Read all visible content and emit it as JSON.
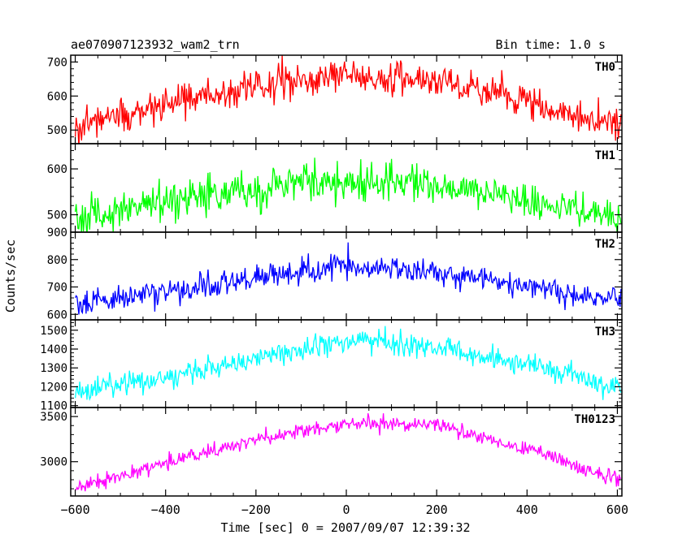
{
  "header": {
    "title": "ae070907123932_wam2_trn",
    "bin_time": "Bin time: 1.0 s"
  },
  "axes": {
    "xlabel": "Time [sec] 0 = 2007/09/07 12:39:32",
    "ylabel": "Counts/sec"
  },
  "chart_data": {
    "type": "line",
    "x_range": [
      -610,
      610
    ],
    "x_ticks": [
      -600,
      -400,
      -200,
      0,
      200,
      400,
      600
    ],
    "x_tick_labels": [
      "−600",
      "−400",
      "−200",
      "0",
      "200",
      "400",
      "600"
    ],
    "bin_time_s": 1.0,
    "panels": [
      {
        "name": "TH0",
        "color": "#ff0000",
        "ylim": [
          460,
          720
        ],
        "y_ticks": [
          500,
          600,
          700
        ],
        "trend": {
          "x": [
            -600,
            -400,
            -200,
            0,
            200,
            400,
            600
          ],
          "y": [
            515,
            575,
            630,
            665,
            640,
            585,
            515
          ]
        },
        "noise": 45
      },
      {
        "name": "TH1",
        "color": "#00ff00",
        "ylim": [
          462,
          655
        ],
        "y_ticks": [
          500,
          600
        ],
        "trend": {
          "x": [
            -600,
            -400,
            -200,
            0,
            200,
            400,
            600
          ],
          "y": [
            490,
            525,
            560,
            575,
            565,
            530,
            495
          ]
        },
        "noise": 38
      },
      {
        "name": "TH2",
        "color": "#0000ff",
        "ylim": [
          580,
          900
        ],
        "y_ticks": [
          600,
          700,
          800,
          900
        ],
        "trend": {
          "x": [
            -600,
            -400,
            -200,
            0,
            200,
            400,
            600
          ],
          "y": [
            640,
            680,
            735,
            775,
            750,
            700,
            650
          ]
        },
        "noise": 42
      },
      {
        "name": "TH3",
        "color": "#00ffff",
        "ylim": [
          1090,
          1555
        ],
        "y_ticks": [
          1100,
          1200,
          1300,
          1400,
          1500
        ],
        "trend": {
          "x": [
            -600,
            -400,
            -200,
            0,
            200,
            400,
            600
          ],
          "y": [
            1170,
            1250,
            1350,
            1440,
            1410,
            1320,
            1200
          ]
        },
        "noise": 55
      },
      {
        "name": "TH0123",
        "color": "#ff00ff",
        "ylim": [
          2620,
          3600
        ],
        "y_ticks": [
          3000,
          3500
        ],
        "trend": {
          "x": [
            -600,
            -400,
            -200,
            0,
            200,
            400,
            600
          ],
          "y": [
            2700,
            2990,
            3240,
            3420,
            3400,
            3150,
            2800
          ]
        },
        "noise": 75
      }
    ]
  }
}
